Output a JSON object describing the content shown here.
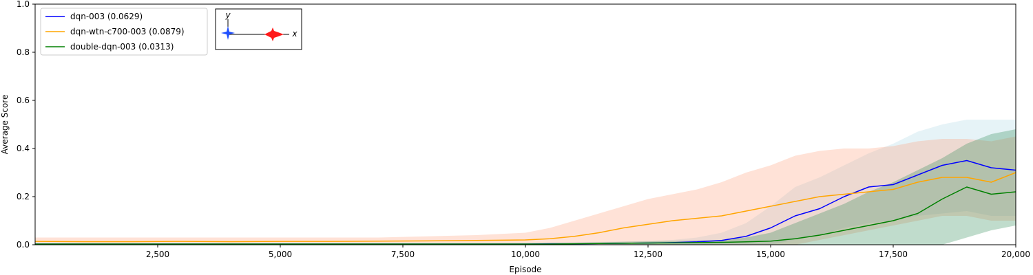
{
  "chart_data": {
    "type": "line",
    "xlabel": "Episode",
    "ylabel": "Average Score",
    "xlim": [
      0,
      20000
    ],
    "ylim": [
      0.0,
      1.0
    ],
    "grid": false,
    "legend_position": "top-left",
    "x_ticks": [
      2500,
      5000,
      7500,
      10000,
      12500,
      15000,
      17500,
      20000
    ],
    "x_tick_labels": [
      "2,500",
      "5,000",
      "7,500",
      "10,000",
      "12,500",
      "15,000",
      "17,500",
      "20,000"
    ],
    "y_ticks": [
      0.0,
      0.2,
      0.4,
      0.6,
      0.8,
      1.0
    ],
    "y_tick_labels": [
      "0.0",
      "0.2",
      "0.4",
      "0.6",
      "0.8",
      "1.0"
    ],
    "x": [
      0,
      1000,
      2000,
      3000,
      4000,
      5000,
      6000,
      7000,
      8000,
      9000,
      10000,
      10500,
      11000,
      11500,
      12000,
      12500,
      13000,
      13500,
      14000,
      14500,
      15000,
      15500,
      16000,
      16500,
      17000,
      17500,
      18000,
      18500,
      19000,
      19500,
      20000
    ],
    "series": [
      {
        "name": "dqn-003 (0.0629)",
        "color": "#0000ff",
        "band_color": "#add8e6",
        "values": [
          0.003,
          0.003,
          0.003,
          0.003,
          0.003,
          0.003,
          0.003,
          0.003,
          0.003,
          0.003,
          0.003,
          0.004,
          0.004,
          0.005,
          0.006,
          0.007,
          0.009,
          0.012,
          0.018,
          0.035,
          0.07,
          0.12,
          0.15,
          0.2,
          0.24,
          0.25,
          0.29,
          0.33,
          0.35,
          0.32,
          0.31
        ],
        "lower": [
          0.0,
          0.0,
          0.0,
          0.0,
          0.0,
          0.0,
          0.0,
          0.0,
          0.0,
          0.0,
          0.0,
          0.0,
          0.0,
          0.0,
          0.0,
          0.0,
          0.0,
          0.0,
          0.0,
          0.0,
          0.0,
          0.02,
          0.04,
          0.07,
          0.09,
          0.1,
          0.12,
          0.13,
          0.14,
          0.12,
          0.12
        ],
        "upper": [
          0.006,
          0.006,
          0.006,
          0.006,
          0.006,
          0.006,
          0.006,
          0.006,
          0.006,
          0.006,
          0.008,
          0.009,
          0.01,
          0.012,
          0.014,
          0.016,
          0.02,
          0.03,
          0.05,
          0.09,
          0.16,
          0.24,
          0.28,
          0.33,
          0.38,
          0.42,
          0.47,
          0.5,
          0.52,
          0.52,
          0.52
        ]
      },
      {
        "name": "dqn-wtn-c700-003 (0.0879)",
        "color": "#ffa500",
        "band_color": "#ffa07a",
        "values": [
          0.014,
          0.013,
          0.013,
          0.014,
          0.013,
          0.014,
          0.014,
          0.015,
          0.016,
          0.018,
          0.02,
          0.025,
          0.035,
          0.05,
          0.07,
          0.085,
          0.1,
          0.11,
          0.12,
          0.14,
          0.16,
          0.18,
          0.2,
          0.21,
          0.22,
          0.23,
          0.26,
          0.28,
          0.28,
          0.26,
          0.3
        ],
        "lower": [
          0.0,
          0.0,
          0.0,
          0.0,
          0.0,
          0.0,
          0.0,
          0.0,
          0.0,
          0.0,
          0.0,
          0.0,
          0.0,
          0.0,
          0.0,
          0.0,
          0.0,
          0.0,
          0.0,
          0.0,
          0.0,
          0.0,
          0.02,
          0.04,
          0.06,
          0.08,
          0.1,
          0.12,
          0.12,
          0.1,
          0.1
        ],
        "upper": [
          0.03,
          0.03,
          0.03,
          0.03,
          0.03,
          0.03,
          0.03,
          0.03,
          0.035,
          0.04,
          0.05,
          0.07,
          0.1,
          0.13,
          0.16,
          0.19,
          0.21,
          0.23,
          0.26,
          0.3,
          0.33,
          0.37,
          0.39,
          0.4,
          0.4,
          0.41,
          0.43,
          0.44,
          0.44,
          0.43,
          0.45
        ]
      },
      {
        "name": "double-dqn-003 (0.0313)",
        "color": "#008000",
        "band_color": "#2e8b57",
        "values": [
          0.003,
          0.003,
          0.003,
          0.003,
          0.003,
          0.003,
          0.003,
          0.003,
          0.003,
          0.003,
          0.003,
          0.003,
          0.004,
          0.005,
          0.006,
          0.007,
          0.008,
          0.009,
          0.01,
          0.012,
          0.015,
          0.025,
          0.04,
          0.06,
          0.08,
          0.1,
          0.13,
          0.19,
          0.24,
          0.21,
          0.22
        ],
        "lower": [
          0.0,
          0.0,
          0.0,
          0.0,
          0.0,
          0.0,
          0.0,
          0.0,
          0.0,
          0.0,
          0.0,
          0.0,
          0.0,
          0.0,
          0.0,
          0.0,
          0.0,
          0.0,
          0.0,
          0.0,
          0.0,
          0.0,
          0.0,
          0.0,
          0.0,
          0.0,
          0.0,
          0.0,
          0.03,
          0.06,
          0.08
        ],
        "upper": [
          0.006,
          0.006,
          0.006,
          0.006,
          0.006,
          0.006,
          0.006,
          0.006,
          0.006,
          0.006,
          0.006,
          0.007,
          0.008,
          0.01,
          0.012,
          0.014,
          0.016,
          0.018,
          0.02,
          0.03,
          0.05,
          0.09,
          0.13,
          0.17,
          0.22,
          0.26,
          0.31,
          0.36,
          0.42,
          0.46,
          0.48
        ]
      }
    ]
  },
  "inset": {
    "y_axis_label": "y",
    "x_axis_label": "x",
    "agent_left_color": "#1f4fff",
    "agent_right_color": "#ff1a1a"
  }
}
